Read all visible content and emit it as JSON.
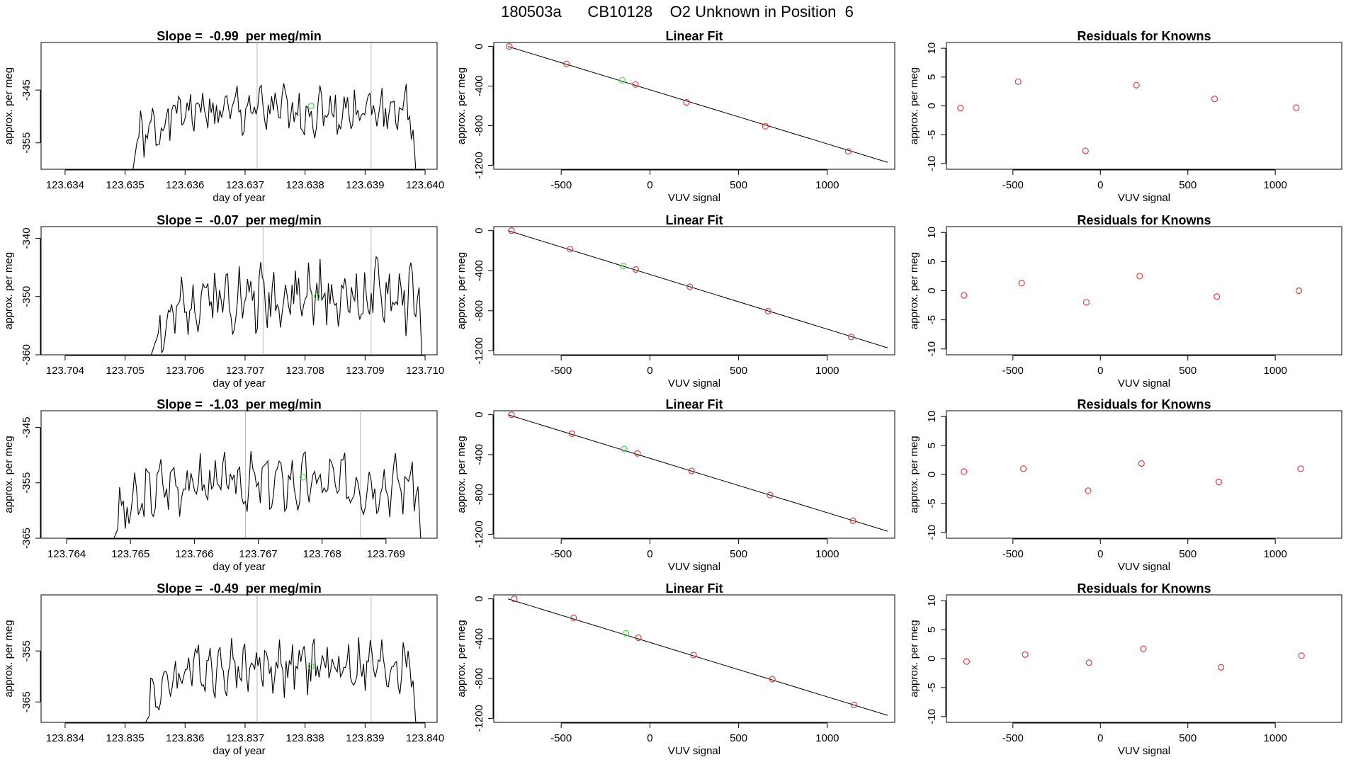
{
  "suptitle": "180503a      CB10128    O2 Unknown in Position  6",
  "colors": {
    "line": "#000000",
    "known": "#d9413f",
    "unknown": "#3ee03e",
    "vline": "#b8b8b8",
    "axis": "#000000"
  },
  "chart_data": [
    {
      "type": "line",
      "title": "Slope =  -0.99  per meg/min",
      "xlabel": "day of year",
      "ylabel": "approx. per meg",
      "xlim": [
        123.6336,
        123.6402
      ],
      "ylim": [
        -360,
        -336
      ],
      "xticks": [
        "123.634",
        "123.635",
        "123.636",
        "123.637",
        "123.638",
        "123.639",
        "123.640"
      ],
      "xtickvals": [
        123.634,
        123.635,
        123.636,
        123.637,
        123.638,
        123.639,
        123.64
      ],
      "yticks": [
        "-345",
        "-355"
      ],
      "ytickvals": [
        -345,
        -355
      ],
      "vlines": [
        123.6372,
        123.6391
      ],
      "start": 123.6352,
      "end": 123.6398,
      "base": -349,
      "amp": 4.3,
      "seed": 1,
      "unknown_point": {
        "x": 123.6381,
        "y": -348
      }
    },
    {
      "type": "scatter",
      "title": "Linear Fit",
      "xlabel": "VUV signal",
      "ylabel": "approx. per meg",
      "xlim": [
        -880,
        1380
      ],
      "ylim": [
        -1240,
        40
      ],
      "xticks": [
        "-500",
        "0",
        "500",
        "1000"
      ],
      "xtickvals": [
        -500,
        0,
        500,
        1000
      ],
      "yticks": [
        "0",
        "-400",
        "-800",
        "-1200"
      ],
      "ytickvals": [
        0,
        -400,
        -800,
        -1200
      ],
      "fit_line": [
        [
          -800,
          0
        ],
        [
          1340,
          -1170
        ]
      ],
      "known_points": [
        [
          -793,
          0
        ],
        [
          -470,
          -176
        ],
        [
          -81,
          -384
        ],
        [
          206,
          -564
        ],
        [
          651,
          -806
        ],
        [
          1118,
          -1060
        ]
      ],
      "unknown_point": [
        -155,
        -342
      ]
    },
    {
      "type": "scatter",
      "title": "Residuals for Knowns",
      "xlabel": "VUV signal",
      "ylabel": "approx. per meg",
      "xlim": [
        -880,
        1380
      ],
      "ylim": [
        -11,
        11
      ],
      "xticks": [
        "-500",
        "0",
        "500",
        "1000"
      ],
      "xtickvals": [
        -500,
        0,
        500,
        1000
      ],
      "yticks": [
        "10",
        "5",
        "0",
        "-5",
        "-10"
      ],
      "ytickvals": [
        10,
        5,
        0,
        -5,
        -10
      ],
      "points": [
        [
          -800,
          -0.4
        ],
        [
          -470,
          4.2
        ],
        [
          -85,
          -7.8
        ],
        [
          206,
          3.6
        ],
        [
          653,
          1.2
        ],
        [
          1120,
          -0.3
        ]
      ]
    },
    {
      "type": "line",
      "title": "Slope =  -0.07  per meg/min",
      "xlabel": "day of year",
      "ylabel": "approx. per meg",
      "xlim": [
        123.7036,
        123.7102
      ],
      "ylim": [
        -360,
        -338
      ],
      "xticks": [
        "123.704",
        "123.705",
        "123.706",
        "123.707",
        "123.708",
        "123.709",
        "123.710"
      ],
      "xtickvals": [
        123.704,
        123.705,
        123.706,
        123.707,
        123.708,
        123.709,
        123.71
      ],
      "yticks": [
        "-340",
        "-350",
        "-360"
      ],
      "ytickvals": [
        -340,
        -350,
        -360
      ],
      "vlines": [
        123.7073,
        123.7091
      ],
      "start": 123.7055,
      "end": 123.7099,
      "base": -350,
      "amp": 5,
      "seed": 2,
      "unknown_point": {
        "x": 123.7082,
        "y": -350
      }
    },
    {
      "type": "scatter",
      "title": "Linear Fit",
      "xlabel": "VUV signal",
      "ylabel": "approx. per meg",
      "xlim": [
        -880,
        1380
      ],
      "ylim": [
        -1240,
        40
      ],
      "xticks": [
        "-500",
        "0",
        "500",
        "1000"
      ],
      "xtickvals": [
        -500,
        0,
        500,
        1000
      ],
      "yticks": [
        "0",
        "-400",
        "-800",
        "-1200"
      ],
      "ytickvals": [
        0,
        -400,
        -800,
        -1200
      ],
      "fit_line": [
        [
          -800,
          0
        ],
        [
          1340,
          -1170
        ]
      ],
      "known_points": [
        [
          -780,
          0
        ],
        [
          -450,
          -184
        ],
        [
          -80,
          -388
        ],
        [
          225,
          -560
        ],
        [
          666,
          -804
        ],
        [
          1135,
          -1062
        ]
      ],
      "unknown_point": [
        -150,
        -354
      ]
    },
    {
      "type": "scatter",
      "title": "Residuals for Knowns",
      "xlabel": "VUV signal",
      "ylabel": "approx. per meg",
      "xlim": [
        -880,
        1380
      ],
      "ylim": [
        -11,
        11
      ],
      "xticks": [
        "-500",
        "0",
        "500",
        "1000"
      ],
      "xtickvals": [
        -500,
        0,
        500,
        1000
      ],
      "yticks": [
        "10",
        "5",
        "0",
        "-5",
        "-10"
      ],
      "ytickvals": [
        10,
        5,
        0,
        -5,
        -10
      ],
      "points": [
        [
          -780,
          -0.8
        ],
        [
          -450,
          1.3
        ],
        [
          -80,
          -2.0
        ],
        [
          225,
          2.5
        ],
        [
          666,
          -1.0
        ],
        [
          1135,
          0.0
        ]
      ]
    },
    {
      "type": "line",
      "title": "Slope =  -1.03  per meg/min",
      "xlabel": "day of year",
      "ylabel": "approx. per meg",
      "xlim": [
        123.7636,
        123.7698
      ],
      "ylim": [
        -365,
        -342
      ],
      "xticks": [
        "123.764",
        "123.765",
        "123.766",
        "123.767",
        "123.768",
        "123.769"
      ],
      "xtickvals": [
        123.764,
        123.765,
        123.766,
        123.767,
        123.768,
        123.769
      ],
      "yticks": [
        "-345",
        "-355",
        "-365"
      ],
      "ytickvals": [
        -345,
        -355,
        -365
      ],
      "vlines": [
        123.7668,
        123.7686
      ],
      "start": 123.7648,
      "end": 123.7695,
      "base": -355,
      "amp": 4.5,
      "seed": 3,
      "unknown_point": {
        "x": 123.7677,
        "y": -354
      }
    },
    {
      "type": "scatter",
      "title": "Linear Fit",
      "xlabel": "VUV signal",
      "ylabel": "approx. per meg",
      "xlim": [
        -880,
        1380
      ],
      "ylim": [
        -1240,
        40
      ],
      "xticks": [
        "-500",
        "0",
        "500",
        "1000"
      ],
      "xtickvals": [
        -500,
        0,
        500,
        1000
      ],
      "yticks": [
        "0",
        "-400",
        "-800",
        "-1200"
      ],
      "ytickvals": [
        0,
        -400,
        -800,
        -1200
      ],
      "fit_line": [
        [
          -800,
          0
        ],
        [
          1340,
          -1170
        ]
      ],
      "known_points": [
        [
          -780,
          0
        ],
        [
          -440,
          -190
        ],
        [
          -70,
          -388
        ],
        [
          235,
          -564
        ],
        [
          677,
          -806
        ],
        [
          1145,
          -1064
        ]
      ],
      "unknown_point": [
        -145,
        -344
      ]
    },
    {
      "type": "scatter",
      "title": "Residuals for Knowns",
      "xlabel": "VUV signal",
      "ylabel": "approx. per meg",
      "xlim": [
        -880,
        1380
      ],
      "ylim": [
        -11,
        11
      ],
      "xticks": [
        "-500",
        "0",
        "500",
        "1000"
      ],
      "xtickvals": [
        -500,
        0,
        500,
        1000
      ],
      "yticks": [
        "10",
        "5",
        "0",
        "-5",
        "-10"
      ],
      "ytickvals": [
        10,
        5,
        0,
        -5,
        -10
      ],
      "points": [
        [
          -780,
          0.5
        ],
        [
          -440,
          1.0
        ],
        [
          -70,
          -2.8
        ],
        [
          235,
          1.9
        ],
        [
          677,
          -1.3
        ],
        [
          1145,
          1.0
        ]
      ]
    },
    {
      "type": "line",
      "title": "Slope =  -0.49  per meg/min",
      "xlabel": "day of year",
      "ylabel": "approx. per meg",
      "xlim": [
        123.8336,
        123.8402
      ],
      "ylim": [
        -369,
        -344
      ],
      "xticks": [
        "123.834",
        "123.835",
        "123.836",
        "123.837",
        "123.838",
        "123.839",
        "123.840"
      ],
      "xtickvals": [
        123.834,
        123.835,
        123.836,
        123.837,
        123.838,
        123.839,
        123.84
      ],
      "yticks": [
        "-355",
        "-365"
      ],
      "ytickvals": [
        -355,
        -365
      ],
      "vlines": [
        123.8372,
        123.8391
      ],
      "start": 123.8354,
      "end": 123.8398,
      "base": -358,
      "amp": 4.6,
      "seed": 4,
      "unknown_point": {
        "x": 123.8381,
        "y": -358
      }
    },
    {
      "type": "scatter",
      "title": "Linear Fit",
      "xlabel": "VUV signal",
      "ylabel": "approx. per meg",
      "xlim": [
        -880,
        1380
      ],
      "ylim": [
        -1240,
        40
      ],
      "xticks": [
        "-500",
        "0",
        "500",
        "1000"
      ],
      "xtickvals": [
        -500,
        0,
        500,
        1000
      ],
      "yticks": [
        "0",
        "-400",
        "-800",
        "-1200"
      ],
      "ytickvals": [
        0,
        -400,
        -800,
        -1200
      ],
      "fit_line": [
        [
          -800,
          0
        ],
        [
          1340,
          -1170
        ]
      ],
      "known_points": [
        [
          -765,
          0
        ],
        [
          -430,
          -190
        ],
        [
          -65,
          -390
        ],
        [
          246,
          -564
        ],
        [
          690,
          -806
        ],
        [
          1150,
          -1065
        ]
      ],
      "unknown_point": [
        -135,
        -346
      ]
    },
    {
      "type": "scatter",
      "title": "Residuals for Knowns",
      "xlabel": "VUV signal",
      "ylabel": "approx. per meg",
      "xlim": [
        -880,
        1380
      ],
      "ylim": [
        -11,
        11
      ],
      "xticks": [
        "-500",
        "0",
        "500",
        "1000"
      ],
      "xtickvals": [
        -500,
        0,
        500,
        1000
      ],
      "yticks": [
        "10",
        "5",
        "0",
        "-5",
        "-10"
      ],
      "ytickvals": [
        10,
        5,
        0,
        -5,
        -10
      ],
      "points": [
        [
          -765,
          -0.5
        ],
        [
          -430,
          0.7
        ],
        [
          -65,
          -0.7
        ],
        [
          246,
          1.7
        ],
        [
          690,
          -1.5
        ],
        [
          1150,
          0.5
        ]
      ]
    }
  ]
}
